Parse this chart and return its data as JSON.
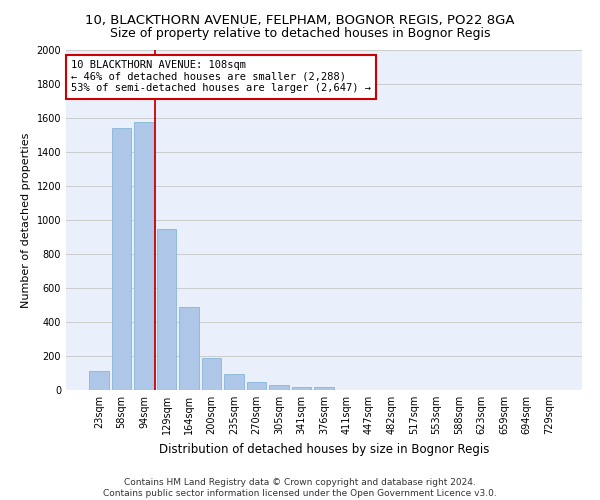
{
  "title1": "10, BLACKTHORN AVENUE, FELPHAM, BOGNOR REGIS, PO22 8GA",
  "title2": "Size of property relative to detached houses in Bognor Regis",
  "xlabel": "Distribution of detached houses by size in Bognor Regis",
  "ylabel": "Number of detached properties",
  "categories": [
    "23sqm",
    "58sqm",
    "94sqm",
    "129sqm",
    "164sqm",
    "200sqm",
    "235sqm",
    "270sqm",
    "305sqm",
    "341sqm",
    "376sqm",
    "411sqm",
    "447sqm",
    "482sqm",
    "517sqm",
    "553sqm",
    "588sqm",
    "623sqm",
    "659sqm",
    "694sqm",
    "729sqm"
  ],
  "values": [
    110,
    1540,
    1575,
    950,
    490,
    190,
    95,
    45,
    30,
    20,
    15,
    0,
    0,
    0,
    0,
    0,
    0,
    0,
    0,
    0,
    0
  ],
  "bar_color": "#aec6e8",
  "bar_edge_color": "#7aafd4",
  "red_line_x": 2.5,
  "annotation_line1": "10 BLACKTHORN AVENUE: 108sqm",
  "annotation_line2": "← 46% of detached houses are smaller (2,288)",
  "annotation_line3": "53% of semi-detached houses are larger (2,647) →",
  "annotation_box_color": "#ffffff",
  "annotation_box_edge": "#cc0000",
  "red_line_color": "#cc0000",
  "ylim": [
    0,
    2000
  ],
  "yticks": [
    0,
    200,
    400,
    600,
    800,
    1000,
    1200,
    1400,
    1600,
    1800,
    2000
  ],
  "grid_color": "#cccccc",
  "bg_color": "#eaf0fb",
  "footer": "Contains HM Land Registry data © Crown copyright and database right 2024.\nContains public sector information licensed under the Open Government Licence v3.0.",
  "title_fontsize": 9.5,
  "subtitle_fontsize": 9,
  "xlabel_fontsize": 8.5,
  "ylabel_fontsize": 8,
  "tick_fontsize": 7,
  "annotation_fontsize": 7.5,
  "footer_fontsize": 6.5
}
